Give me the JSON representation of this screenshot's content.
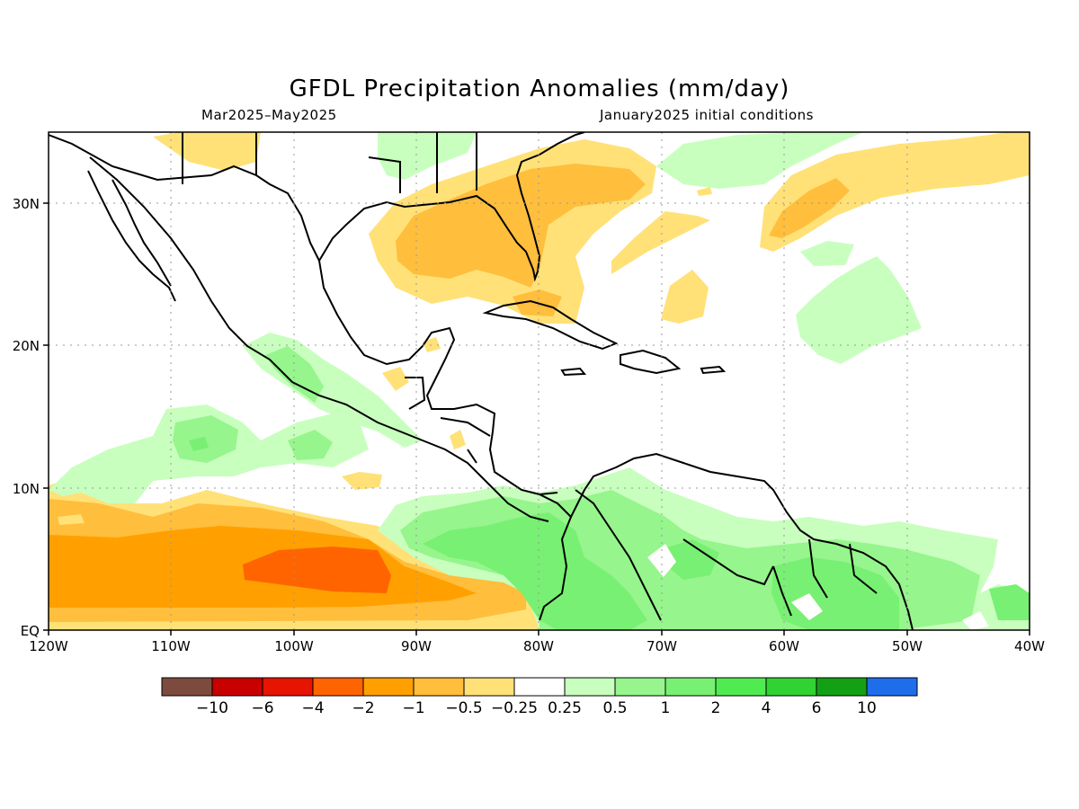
{
  "title": "GFDL Precipitation Anomalies (mm/day)",
  "subtitle_left": "Mar2025–May2025",
  "subtitle_right": "January2025 initial conditions",
  "map": {
    "region": "Tropical Atlantic / Gulf of Mexico / Caribbean",
    "lon_range": [
      -120,
      -40
    ],
    "lat_range": [
      0,
      35
    ],
    "x_ticks": [
      "120W",
      "110W",
      "100W",
      "90W",
      "80W",
      "70W",
      "60W",
      "50W",
      "40W"
    ],
    "y_ticks": [
      "EQ",
      "10N",
      "20N",
      "30N"
    ],
    "colors": {
      "dry_strong": "#ff6400",
      "dry_mid": "#ffa000",
      "dry_light": "#ffbe3c",
      "dry_weak": "#ffe178",
      "wet_weak": "#c8ffbe",
      "wet_light": "#96f58c",
      "wet_mid": "#78f073",
      "wet_strong": "#50eb50"
    }
  },
  "colorbar": {
    "colors": [
      "#7d4b3e",
      "#c80000",
      "#e61400",
      "#ff6400",
      "#ffa000",
      "#ffbe3c",
      "#ffe178",
      "#ffffff",
      "#c8ffbe",
      "#96f58c",
      "#78f073",
      "#50eb50",
      "#32d232",
      "#14a014",
      "#1e6eeb"
    ],
    "labels": [
      "−10",
      "−6",
      "−4",
      "−2",
      "−1",
      "−0.5",
      "−0.25",
      "0.25",
      "0.5",
      "1",
      "2",
      "4",
      "6",
      "10"
    ]
  }
}
